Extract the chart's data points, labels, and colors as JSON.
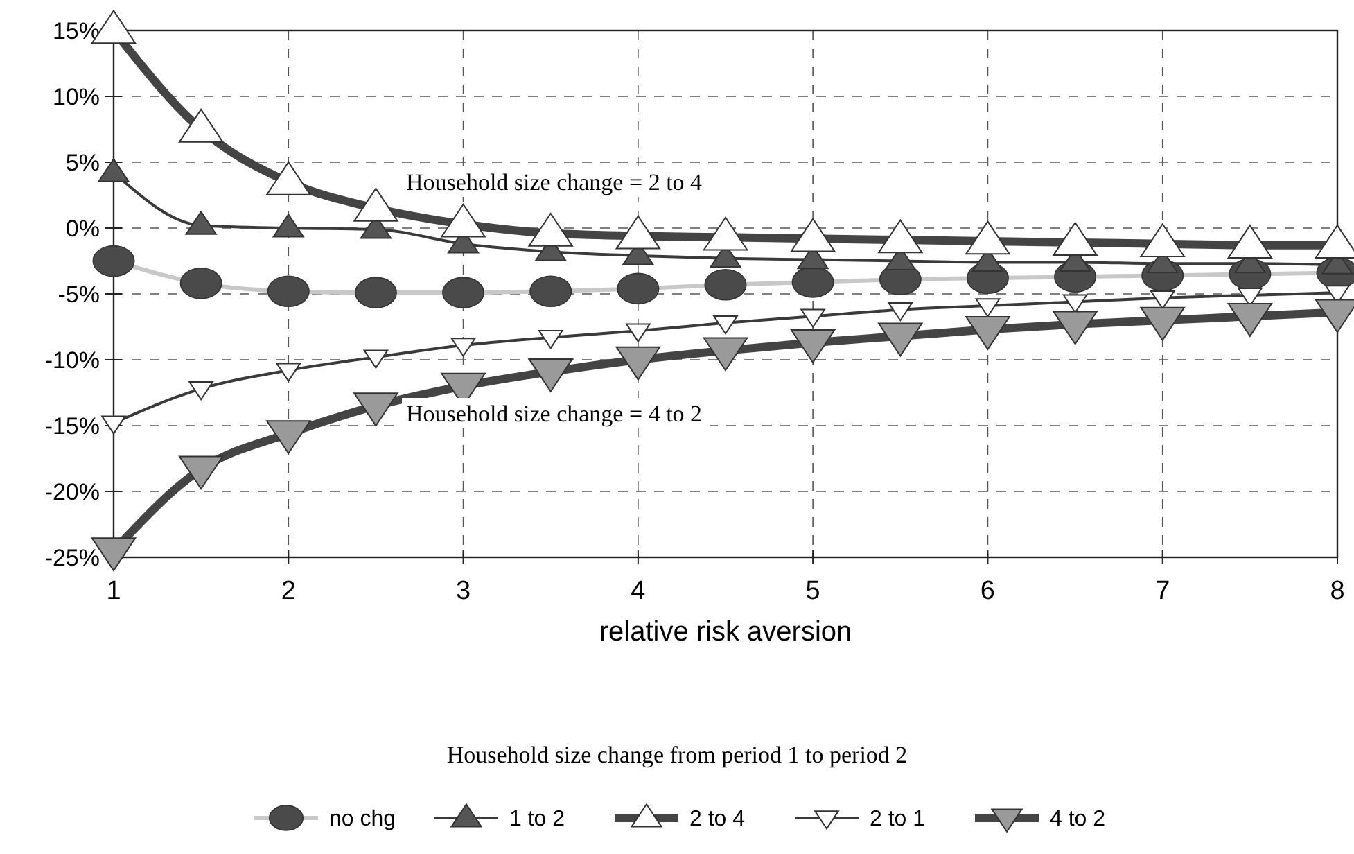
{
  "chart_data": {
    "type": "line",
    "xlabel": "relative risk aversion",
    "legend_title": "Household size change from period 1 to period 2",
    "legend": "bottom",
    "grid": true,
    "line_style": "solid",
    "x": [
      1,
      1.5,
      2,
      2.5,
      3,
      3.5,
      4,
      4.5,
      5,
      5.5,
      6,
      6.5,
      7,
      7.5,
      8
    ],
    "xlim": [
      1,
      8
    ],
    "xticks": [
      1,
      2,
      3,
      4,
      5,
      6,
      7,
      8
    ],
    "ylim": [
      -25,
      15
    ],
    "yticks": [
      {
        "value": -25,
        "label": "-25%"
      },
      {
        "value": -20,
        "label": "-20%"
      },
      {
        "value": -15,
        "label": "-15%"
      },
      {
        "value": -10,
        "label": "-10%"
      },
      {
        "value": -5,
        "label": "-5%"
      },
      {
        "value": 0,
        "label": "0%"
      },
      {
        "value": 5,
        "label": "5%"
      },
      {
        "value": 10,
        "label": "10%"
      },
      {
        "value": 15,
        "label": "15%"
      }
    ],
    "annotations": [
      "Household size change = 2 to 4",
      "Household size change = 4 to 2"
    ],
    "series": [
      {
        "name": "no chg",
        "color": "#c8c8c8",
        "marker": "circle",
        "values": [
          -2.5,
          -4.2,
          -4.8,
          -4.9,
          -4.9,
          -4.8,
          -4.6,
          -4.3,
          -4.1,
          -3.9,
          -3.8,
          -3.7,
          -3.6,
          -3.5,
          -3.4
        ]
      },
      {
        "name": "1 to 2",
        "color": "#3a3a3a",
        "marker": "triangle",
        "values": [
          4.2,
          0.2,
          0,
          -0.1,
          -1.2,
          -1.8,
          -2.1,
          -2.3,
          -2.4,
          -2.5,
          -2.6,
          -2.6,
          -2.7,
          -2.7,
          -2.8
        ]
      },
      {
        "name": "2 to 4",
        "color": "#444444",
        "marker": "triangle",
        "values": [
          15,
          7.5,
          3.5,
          1.5,
          0.3,
          -0.4,
          -0.6,
          -0.7,
          -0.8,
          -0.9,
          -1.0,
          -1.1,
          -1.2,
          -1.3,
          -1.3
        ]
      },
      {
        "name": "2 to 1",
        "color": "#3a3a3a",
        "marker": "triangle-down",
        "values": [
          -14.8,
          -12.2,
          -10.8,
          -9.8,
          -8.9,
          -8.3,
          -7.8,
          -7.2,
          -6.7,
          -6.2,
          -5.9,
          -5.6,
          -5.3,
          -5.1,
          -4.9
        ]
      },
      {
        "name": "4 to 2",
        "color": "#444444",
        "marker": "triangle-down",
        "values": [
          -24.5,
          -18.3,
          -15.6,
          -13.5,
          -12.0,
          -10.9,
          -10.0,
          -9.3,
          -8.7,
          -8.2,
          -7.7,
          -7.3,
          -7.0,
          -6.7,
          -6.4
        ]
      }
    ]
  }
}
